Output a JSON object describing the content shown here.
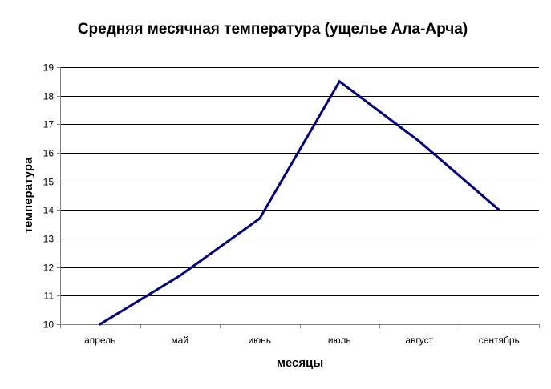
{
  "chart_data": {
    "type": "line",
    "title": "Средняя месячная температура (ущелье Ала-Арча)",
    "xlabel": "месяцы",
    "ylabel": "температура",
    "categories": [
      "апрель",
      "май",
      "июнь",
      "июль",
      "август",
      "сентябрь"
    ],
    "series": [
      {
        "values": [
          10.0,
          11.7,
          13.7,
          18.5,
          16.4,
          14.0
        ]
      }
    ],
    "ylim": [
      10,
      19
    ],
    "yticks": [
      10,
      11,
      12,
      13,
      14,
      15,
      16,
      17,
      18,
      19
    ],
    "grid": true,
    "colors": {
      "line": "#000080",
      "gridline": "#000000",
      "axis": "#808080"
    }
  }
}
